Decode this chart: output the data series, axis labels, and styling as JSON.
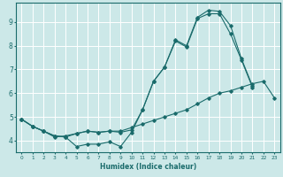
{
  "title": "",
  "xlabel": "Humidex (Indice chaleur)",
  "bg_color": "#cce8e8",
  "line_color": "#1a6b6b",
  "grid_color": "#ffffff",
  "xlim": [
    -0.5,
    23.5
  ],
  "ylim": [
    3.5,
    9.8
  ],
  "xticks": [
    0,
    1,
    2,
    3,
    4,
    5,
    6,
    7,
    8,
    9,
    10,
    11,
    12,
    13,
    14,
    15,
    16,
    17,
    18,
    19,
    20,
    21,
    22,
    23
  ],
  "yticks": [
    4,
    5,
    6,
    7,
    8,
    9
  ],
  "line1_x": [
    0,
    1,
    2,
    3,
    4,
    5,
    6,
    7,
    8,
    9,
    10,
    11,
    12,
    13,
    14,
    15,
    16,
    17,
    18,
    19,
    20,
    21
  ],
  "line1_y": [
    4.9,
    4.6,
    4.4,
    4.2,
    4.15,
    3.75,
    3.85,
    3.85,
    3.95,
    3.75,
    4.35,
    5.3,
    6.5,
    7.1,
    8.25,
    8.0,
    9.2,
    9.5,
    9.45,
    8.85,
    7.45,
    6.3
  ],
  "line2_x": [
    0,
    1,
    2,
    3,
    4,
    5,
    6,
    7,
    8,
    9,
    10,
    11,
    12,
    13,
    14,
    15,
    16,
    17,
    18,
    19,
    20,
    21,
    22,
    23
  ],
  "line2_y": [
    4.9,
    4.6,
    4.4,
    4.15,
    4.2,
    4.3,
    4.4,
    4.35,
    4.4,
    4.4,
    4.55,
    4.7,
    4.85,
    5.0,
    5.15,
    5.3,
    5.55,
    5.8,
    6.0,
    6.1,
    6.25,
    6.4,
    6.5,
    5.8
  ],
  "line3_x": [
    0,
    1,
    2,
    3,
    4,
    5,
    6,
    7,
    8,
    9,
    10,
    11,
    12,
    13,
    14,
    15,
    16,
    17,
    18,
    19,
    20,
    21
  ],
  "line3_y": [
    4.9,
    4.6,
    4.4,
    4.2,
    4.15,
    4.3,
    4.4,
    4.35,
    4.4,
    4.35,
    4.45,
    5.3,
    6.5,
    7.1,
    8.2,
    7.95,
    9.15,
    9.35,
    9.35,
    8.5,
    7.4,
    6.25
  ]
}
